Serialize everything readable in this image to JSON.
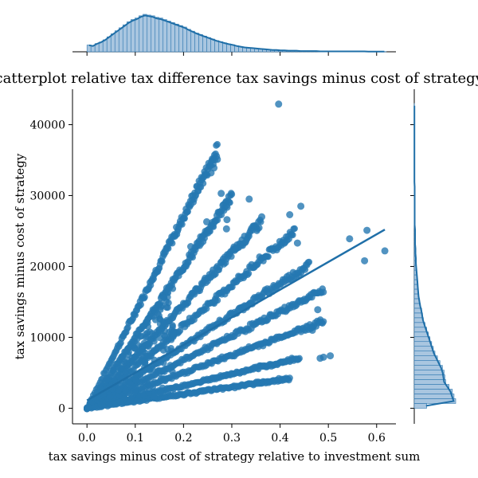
{
  "chart_data": {
    "type": "scatter",
    "title": "Scatterplot relative tax difference tax savings minus cost of strategy",
    "xlabel": "tax savings minus cost of strategy relative to investment sum",
    "ylabel": "tax savings minus cost of strategy",
    "xlim": [
      -0.03,
      0.64
    ],
    "ylim": [
      -2200,
      45000
    ],
    "x_ticks": [
      0.0,
      0.1,
      0.2,
      0.3,
      0.4,
      0.5,
      0.6
    ],
    "x_tick_labels": [
      "0.0",
      "0.1",
      "0.2",
      "0.3",
      "0.4",
      "0.5",
      "0.6"
    ],
    "y_ticks": [
      0,
      10000,
      20000,
      30000,
      40000
    ],
    "y_tick_labels": [
      "0",
      "10000",
      "20000",
      "30000",
      "40000"
    ],
    "colors": {
      "points": "#2678b2",
      "line": "#1f6fa8",
      "hist_fill": "#a9c6e0",
      "hist_edge": "#2d77b0"
    },
    "marginal_x_hist": true,
    "marginal_y_hist": true,
    "ray_slopes": [
      135000,
      100000,
      73000,
      58000,
      44000,
      34000,
      25000,
      16000,
      10000
    ],
    "x_ends": [
      0.27,
      0.3,
      0.36,
      0.43,
      0.46,
      0.49,
      0.49,
      0.44,
      0.42
    ],
    "outliers": [
      {
        "x": 0.397,
        "y": 42900
      },
      {
        "x": 0.27,
        "y": 35100
      },
      {
        "x": 0.263,
        "y": 33900
      },
      {
        "x": 0.257,
        "y": 33200
      },
      {
        "x": 0.278,
        "y": 30300
      },
      {
        "x": 0.336,
        "y": 29500
      },
      {
        "x": 0.443,
        "y": 28500
      },
      {
        "x": 0.42,
        "y": 27300
      },
      {
        "x": 0.29,
        "y": 26600
      },
      {
        "x": 0.362,
        "y": 27000
      },
      {
        "x": 0.248,
        "y": 26300
      },
      {
        "x": 0.544,
        "y": 23900
      },
      {
        "x": 0.58,
        "y": 25100
      },
      {
        "x": 0.617,
        "y": 22200
      },
      {
        "x": 0.575,
        "y": 20800
      },
      {
        "x": 0.436,
        "y": 23300
      },
      {
        "x": 0.307,
        "y": 22600
      },
      {
        "x": 0.289,
        "y": 25300
      },
      {
        "x": 0.266,
        "y": 15200
      },
      {
        "x": 0.215,
        "y": 22800
      },
      {
        "x": 0.49,
        "y": 7200
      },
      {
        "x": 0.483,
        "y": 7050
      },
      {
        "x": 0.504,
        "y": 7400
      },
      {
        "x": 0.467,
        "y": 11000
      },
      {
        "x": 0.478,
        "y": 13900
      }
    ],
    "regression_line": {
      "x": [
        0.0,
        0.617
      ],
      "y": [
        1100,
        25200
      ]
    },
    "x_hist_counts": [
      18,
      16,
      22,
      26,
      32,
      40,
      48,
      56,
      64,
      72,
      80,
      86,
      90,
      96,
      100,
      98,
      96,
      92,
      90,
      86,
      82,
      78,
      74,
      70,
      66,
      60,
      55,
      50,
      46,
      42,
      38,
      34,
      30,
      27,
      24,
      21,
      19,
      16,
      14,
      12,
      11,
      10,
      9,
      8,
      7,
      6,
      5,
      5,
      4,
      4,
      3,
      3,
      3,
      2,
      2,
      2,
      2,
      2,
      1,
      1,
      1,
      1,
      1,
      1,
      1,
      1,
      1,
      1,
      1,
      1,
      0.5,
      0.5,
      0.5,
      0.5,
      0.5
    ],
    "y_hist_counts": [
      30,
      100,
      96,
      92,
      84,
      76,
      74,
      72,
      68,
      62,
      56,
      50,
      46,
      42,
      38,
      34,
      30,
      26,
      22,
      20,
      18,
      15,
      13,
      11,
      10,
      9,
      8,
      7,
      6,
      5,
      4,
      4,
      3,
      3,
      2,
      2,
      2,
      2,
      1,
      1,
      1,
      1,
      1,
      1,
      1,
      1,
      1,
      0.5,
      0.5,
      0.5,
      0.5,
      0.5,
      0.5,
      0.5,
      0.5,
      0.5,
      0.5,
      0.5,
      0.5,
      0.5,
      0.5,
      0.5,
      0.5,
      0.5
    ]
  }
}
